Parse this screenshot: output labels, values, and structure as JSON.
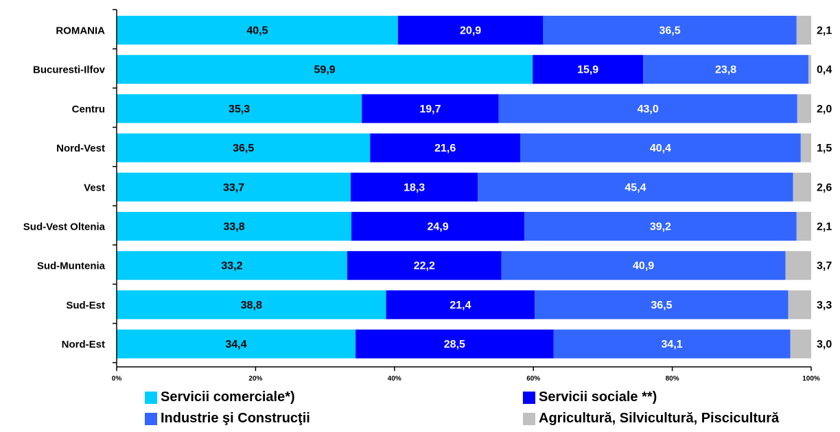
{
  "chart_data": {
    "type": "bar",
    "orientation": "horizontal",
    "stacked": "percent",
    "categories": [
      "ROMANIA",
      "Bucuresti-Ilfov",
      "Centru",
      "Nord-Vest",
      "Vest",
      "Sud-Vest Oltenia",
      "Sud-Muntenia",
      "Sud-Est",
      "Nord-Est"
    ],
    "series": [
      {
        "name": "Servicii comerciale*)",
        "color": "#00CCFF",
        "label_color": "#000000",
        "values": [
          40.5,
          59.9,
          35.3,
          36.5,
          33.7,
          33.8,
          33.2,
          38.8,
          34.4
        ],
        "labels": [
          "40,5",
          "59,9",
          "35,3",
          "36,5",
          "33,7",
          "33,8",
          "33,2",
          "38,8",
          "34,4"
        ]
      },
      {
        "name": "Servicii sociale **)",
        "color": "#0000FF",
        "label_color": "#FFFFFF",
        "values": [
          20.9,
          15.9,
          19.7,
          21.6,
          18.3,
          24.9,
          22.2,
          21.4,
          28.5
        ],
        "labels": [
          "20,9",
          "15,9",
          "19,7",
          "21,6",
          "18,3",
          "24,9",
          "22,2",
          "21,4",
          "28,5"
        ]
      },
      {
        "name": "Industrie şi Construcţii",
        "color": "#3366FF",
        "label_color": "#FFFFFF",
        "values": [
          36.5,
          23.8,
          43.0,
          40.4,
          45.4,
          39.2,
          40.9,
          36.5,
          34.1
        ],
        "labels": [
          "36,5",
          "23,8",
          "43,0",
          "40,4",
          "45,4",
          "39,2",
          "40,9",
          "36,5",
          "34,1"
        ]
      },
      {
        "name": "Agricultură, Silvicultură, Piscicultură",
        "color": "#C0C0C0",
        "label_color": "#000000",
        "values": [
          2.1,
          0.4,
          2.0,
          1.5,
          2.6,
          2.1,
          3.7,
          3.3,
          3.0
        ],
        "labels": [
          "2,1",
          "0,4",
          "2,0",
          "1,5",
          "2,6",
          "2,1",
          "3,7",
          "3,3",
          "3,0"
        ]
      }
    ],
    "xlim": [
      0,
      100
    ],
    "x_ticks": [
      "0%",
      "20%",
      "40%",
      "60%",
      "80%",
      "100%"
    ],
    "grid": false,
    "legend_position": "bottom"
  }
}
